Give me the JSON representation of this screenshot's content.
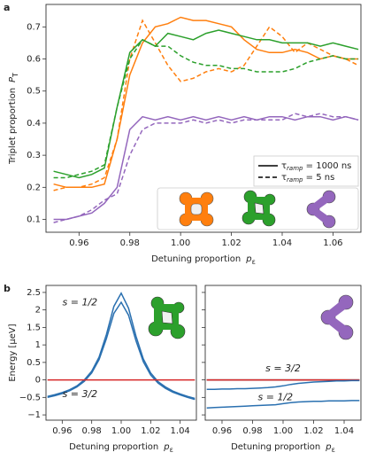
{
  "chart_data": [
    {
      "type": "line",
      "panel_label": "a",
      "xlabel": "Detuning proportion",
      "xlabel_symbol": "p",
      "xlabel_sub": "ε",
      "ylabel": "Triplet proportion",
      "ylabel_symbol": "P",
      "ylabel_sub": "T",
      "xlim": [
        0.947,
        1.071
      ],
      "ylim": [
        0.06,
        0.77
      ],
      "xticks": [
        0.96,
        0.98,
        {
          "value": 1,
          "label": "1.00"
        },
        1.02,
        1.04,
        1.06
      ],
      "yticks": [
        0.1,
        0.2,
        0.3,
        0.4,
        0.5,
        0.6,
        0.7
      ],
      "x": [
        0.95,
        0.955,
        0.96,
        0.965,
        0.97,
        0.975,
        0.98,
        0.985,
        0.99,
        0.995,
        1.0,
        1.005,
        1.01,
        1.015,
        1.02,
        1.025,
        1.03,
        1.035,
        1.04,
        1.045,
        1.05,
        1.055,
        1.06,
        1.065,
        1.07
      ],
      "series": [
        {
          "color": "#ff7f0e",
          "dash": "solid",
          "values": [
            0.21,
            0.2,
            0.2,
            0.2,
            0.21,
            0.35,
            0.55,
            0.65,
            0.7,
            0.71,
            0.73,
            0.72,
            0.72,
            0.71,
            0.7,
            0.66,
            0.63,
            0.62,
            0.62,
            0.63,
            0.62,
            0.6,
            0.61,
            0.6,
            0.6
          ]
        },
        {
          "color": "#ff7f0e",
          "dash": "dashed",
          "values": [
            0.19,
            0.2,
            0.2,
            0.21,
            0.23,
            0.35,
            0.6,
            0.72,
            0.65,
            0.58,
            0.53,
            0.54,
            0.56,
            0.57,
            0.56,
            0.58,
            0.64,
            0.7,
            0.67,
            0.62,
            0.65,
            0.63,
            0.61,
            0.6,
            0.58
          ]
        },
        {
          "color": "#2ca02c",
          "dash": "solid",
          "values": [
            0.25,
            0.24,
            0.23,
            0.24,
            0.26,
            0.45,
            0.62,
            0.66,
            0.64,
            0.68,
            0.67,
            0.66,
            0.68,
            0.69,
            0.68,
            0.67,
            0.66,
            0.66,
            0.65,
            0.65,
            0.65,
            0.64,
            0.65,
            0.64,
            0.63
          ]
        },
        {
          "color": "#2ca02c",
          "dash": "dashed",
          "values": [
            0.23,
            0.23,
            0.24,
            0.25,
            0.27,
            0.45,
            0.6,
            0.66,
            0.64,
            0.64,
            0.61,
            0.59,
            0.58,
            0.58,
            0.57,
            0.57,
            0.56,
            0.56,
            0.56,
            0.57,
            0.59,
            0.6,
            0.61,
            0.6,
            0.6
          ]
        },
        {
          "color": "#9467bd",
          "dash": "solid",
          "values": [
            0.1,
            0.1,
            0.11,
            0.12,
            0.15,
            0.2,
            0.38,
            0.42,
            0.41,
            0.42,
            0.41,
            0.42,
            0.41,
            0.42,
            0.41,
            0.42,
            0.41,
            0.42,
            0.42,
            0.41,
            0.42,
            0.42,
            0.41,
            0.42,
            0.41
          ]
        },
        {
          "color": "#9467bd",
          "dash": "dashed",
          "values": [
            0.09,
            0.1,
            0.11,
            0.13,
            0.16,
            0.18,
            0.3,
            0.38,
            0.4,
            0.4,
            0.4,
            0.41,
            0.4,
            0.41,
            0.4,
            0.41,
            0.41,
            0.41,
            0.41,
            0.43,
            0.42,
            0.43,
            0.42,
            0.42,
            0.41
          ]
        }
      ],
      "legend": [
        {
          "dash": "solid",
          "symbol": "τ",
          "sub": "ramp",
          "text": " = 1000 ns"
        },
        {
          "dash": "dashed",
          "symbol": "τ",
          "sub": "ramp",
          "text": " = 5 ns"
        }
      ]
    },
    {
      "type": "line",
      "panel_label": "b",
      "xlabel": "Detuning proportion",
      "xlabel_symbol": "p",
      "xlabel_sub": "ε",
      "ylabel": "Energy  [μeV]",
      "xlim": [
        0.949,
        1.051
      ],
      "ylim": [
        -1.15,
        2.7
      ],
      "xticks": [
        0.96,
        0.98,
        {
          "value": 1,
          "label": "1.00"
        },
        1.02,
        1.04
      ],
      "yticks": [
        {
          "value": -1,
          "label": "−1"
        },
        {
          "value": -0.5,
          "label": "−0.5"
        },
        0,
        0.5,
        1,
        1.5,
        2,
        2.5
      ],
      "ytick_labels": true,
      "x": [
        0.95,
        0.955,
        0.96,
        0.965,
        0.97,
        0.975,
        0.98,
        0.985,
        0.99,
        0.995,
        1.0,
        1.005,
        1.01,
        1.015,
        1.02,
        1.025,
        1.03,
        1.035,
        1.04,
        1.045,
        1.05
      ],
      "series": [
        {
          "color": "#2a70b0",
          "dash": "solid",
          "values": [
            -0.47,
            -0.42,
            -0.36,
            -0.28,
            -0.17,
            0.0,
            0.25,
            0.65,
            1.3,
            2.1,
            2.48,
            2.05,
            1.25,
            0.6,
            0.2,
            -0.05,
            -0.2,
            -0.32,
            -0.4,
            -0.47,
            -0.53
          ]
        },
        {
          "color": "#2a70b0",
          "dash": "solid",
          "values": [
            -0.5,
            -0.45,
            -0.39,
            -0.31,
            -0.2,
            -0.04,
            0.2,
            0.58,
            1.18,
            1.9,
            2.22,
            1.85,
            1.12,
            0.52,
            0.14,
            -0.09,
            -0.24,
            -0.35,
            -0.43,
            -0.5,
            -0.56
          ]
        },
        {
          "color": "#d62728",
          "dash": "solid",
          "x": [
            0.95,
            1.05
          ],
          "values": [
            0,
            0
          ]
        }
      ],
      "annotations": [
        {
          "text": "s = 1/2",
          "color": "#2a70b0",
          "x": 0.972,
          "y": 2.2
        },
        {
          "text": "s = 3/2",
          "color": "#d62728",
          "x": 0.972,
          "y": -0.42
        }
      ]
    },
    {
      "type": "line",
      "xlabel": "Detuning proportion",
      "xlabel_symbol": "p",
      "xlabel_sub": "ε",
      "xlim": [
        0.949,
        1.051
      ],
      "ylim": [
        -1.15,
        2.7
      ],
      "xticks": [
        0.96,
        0.98,
        {
          "value": 1,
          "label": "1.00"
        },
        1.02,
        1.04
      ],
      "yticks": [
        -1,
        -0.5,
        0,
        0.5,
        1,
        1.5,
        2,
        2.5
      ],
      "ytick_labels": false,
      "x": [
        0.95,
        0.955,
        0.96,
        0.965,
        0.97,
        0.975,
        0.98,
        0.985,
        0.99,
        0.995,
        1.0,
        1.005,
        1.01,
        1.015,
        1.02,
        1.025,
        1.03,
        1.035,
        1.04,
        1.045,
        1.05
      ],
      "series": [
        {
          "color": "#222222",
          "dash": "solid",
          "x": [
            0.95,
            1.05
          ],
          "values": [
            0,
            0
          ]
        },
        {
          "color": "#d62728",
          "dash": "solid",
          "x": [
            0.95,
            1.05
          ],
          "values": [
            0,
            0
          ]
        },
        {
          "color": "#2a70b0",
          "dash": "solid",
          "values": [
            -0.27,
            -0.27,
            -0.26,
            -0.26,
            -0.25,
            -0.25,
            -0.24,
            -0.23,
            -0.22,
            -0.2,
            -0.17,
            -0.13,
            -0.1,
            -0.08,
            -0.06,
            -0.05,
            -0.04,
            -0.03,
            -0.03,
            -0.02,
            -0.02
          ]
        },
        {
          "color": "#2a70b0",
          "dash": "solid",
          "values": [
            -0.8,
            -0.79,
            -0.78,
            -0.77,
            -0.76,
            -0.75,
            -0.74,
            -0.73,
            -0.72,
            -0.71,
            -0.68,
            -0.65,
            -0.63,
            -0.62,
            -0.61,
            -0.61,
            -0.6,
            -0.6,
            -0.6,
            -0.59,
            -0.59
          ]
        }
      ],
      "annotations": [
        {
          "text": "s = 3/2",
          "color": "#d62728",
          "x": 1.0,
          "y": 0.32
        },
        {
          "text": "s = 1/2",
          "color": "#2a70b0",
          "x": 0.995,
          "y": -0.5
        }
      ]
    }
  ]
}
